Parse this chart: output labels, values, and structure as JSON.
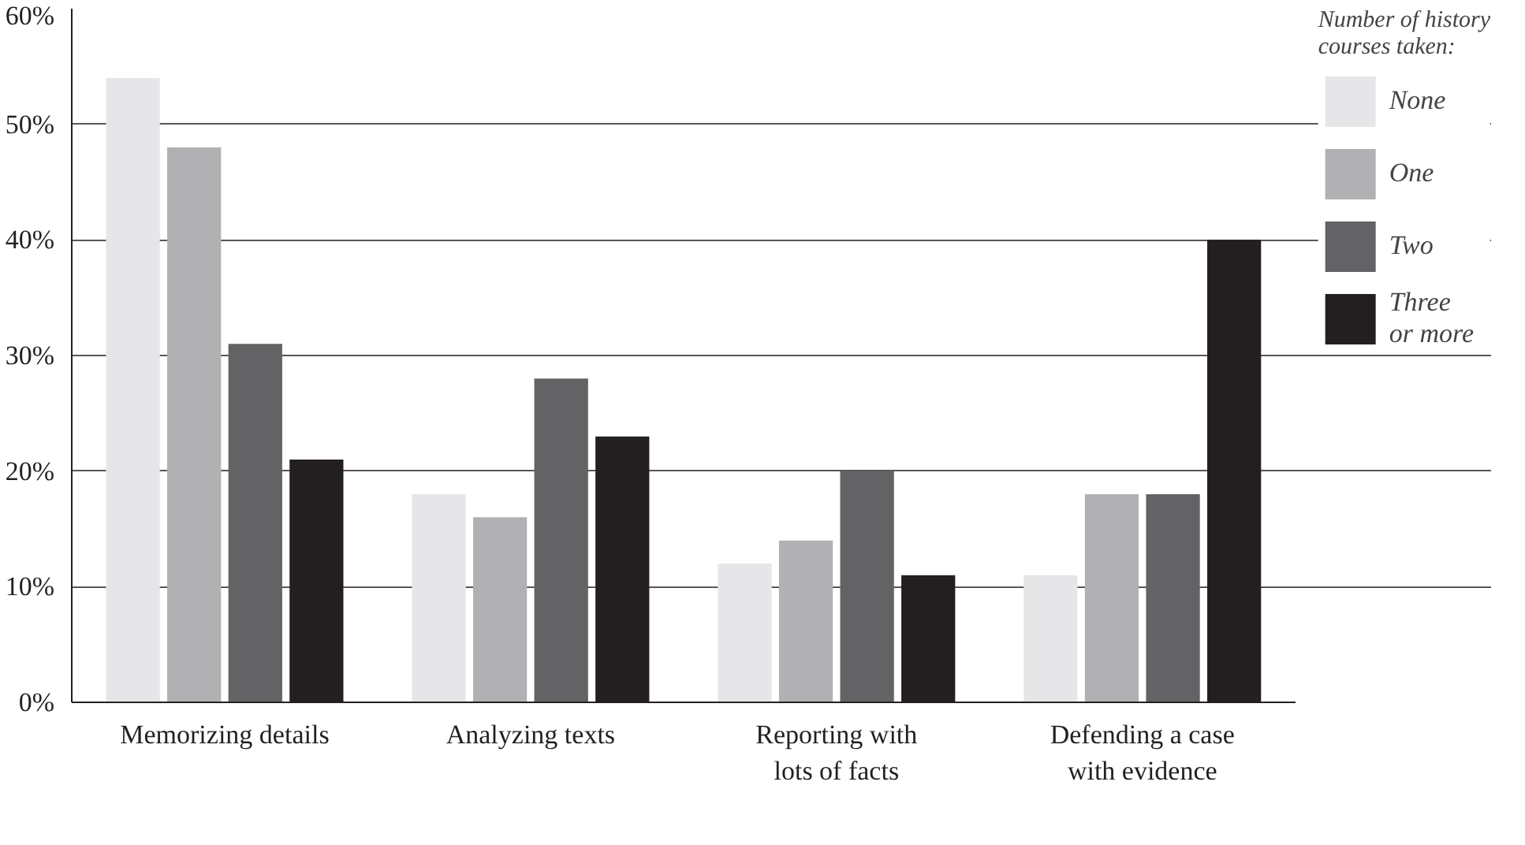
{
  "chart_data": {
    "type": "bar",
    "categories": [
      "Memorizing details",
      "Analyzing texts",
      "Reporting with\nlots of facts",
      "Defending a case\nwith evidence"
    ],
    "series": [
      {
        "name": "None",
        "color": "#e6e6e8",
        "values": [
          54,
          18,
          12,
          11
        ]
      },
      {
        "name": "One",
        "color": "#b1b1b3",
        "values": [
          48,
          16,
          14,
          18
        ]
      },
      {
        "name": "Two",
        "color": "#636365",
        "values": [
          31,
          28,
          20,
          18
        ]
      },
      {
        "name": "Three\nor more",
        "color": "#231f20",
        "values": [
          21,
          23,
          11,
          40
        ]
      }
    ],
    "legend_title": "Number of history\ncourses taken:",
    "legend": "top right",
    "grid": "y",
    "ylim": [
      0,
      60
    ],
    "yticks": [
      {
        "value": 0,
        "label": "0%"
      },
      {
        "value": 10,
        "label": "10%"
      },
      {
        "value": 20,
        "label": "20%"
      },
      {
        "value": 30,
        "label": "30%"
      },
      {
        "value": 40,
        "label": "40%"
      },
      {
        "value": 50,
        "label": "50%"
      },
      {
        "value": 60,
        "label": "60%"
      }
    ]
  }
}
